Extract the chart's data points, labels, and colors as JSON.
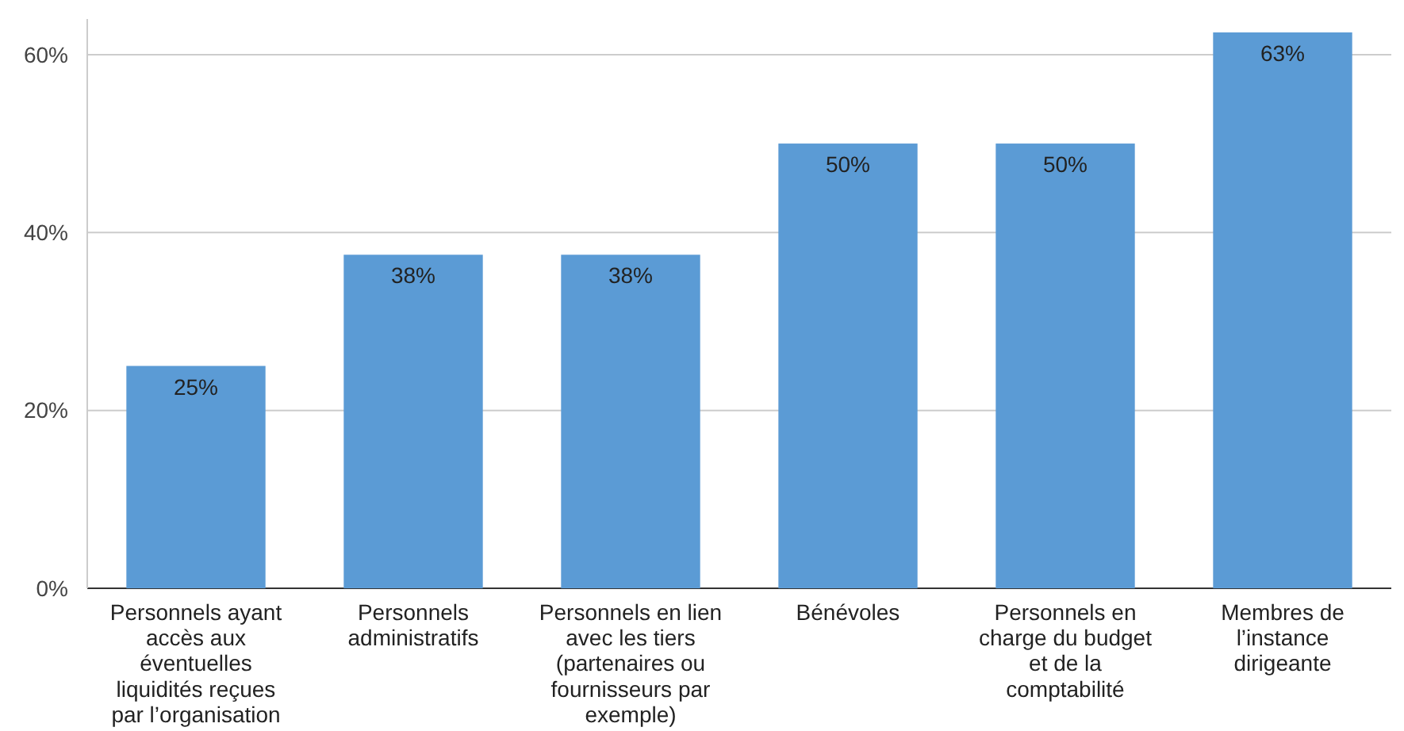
{
  "chart_data": {
    "type": "bar",
    "categories": [
      "Personnels ayant accès aux éventuelles liquidités reçues par l’organisation",
      "Personnels administratifs",
      "Personnels en lien avec les tiers (partenaires ou fournisseurs par exemple)",
      "Bénévoles",
      "Personnels en charge du budget et de la comptabilité",
      "Membres de l’instance dirigeante"
    ],
    "values": [
      25,
      37.5,
      37.5,
      50,
      50,
      62.5
    ],
    "value_labels": [
      "25%",
      "38%",
      "38%",
      "50%",
      "50%",
      "63%"
    ],
    "color": "#5b9bd5",
    "ylim": [
      0,
      64
    ],
    "yticks": [
      {
        "value": 0,
        "label": "0%"
      },
      {
        "value": 20,
        "label": "20%"
      },
      {
        "value": 40,
        "label": "40%"
      },
      {
        "value": 60,
        "label": "60%"
      }
    ],
    "grid": "y"
  }
}
